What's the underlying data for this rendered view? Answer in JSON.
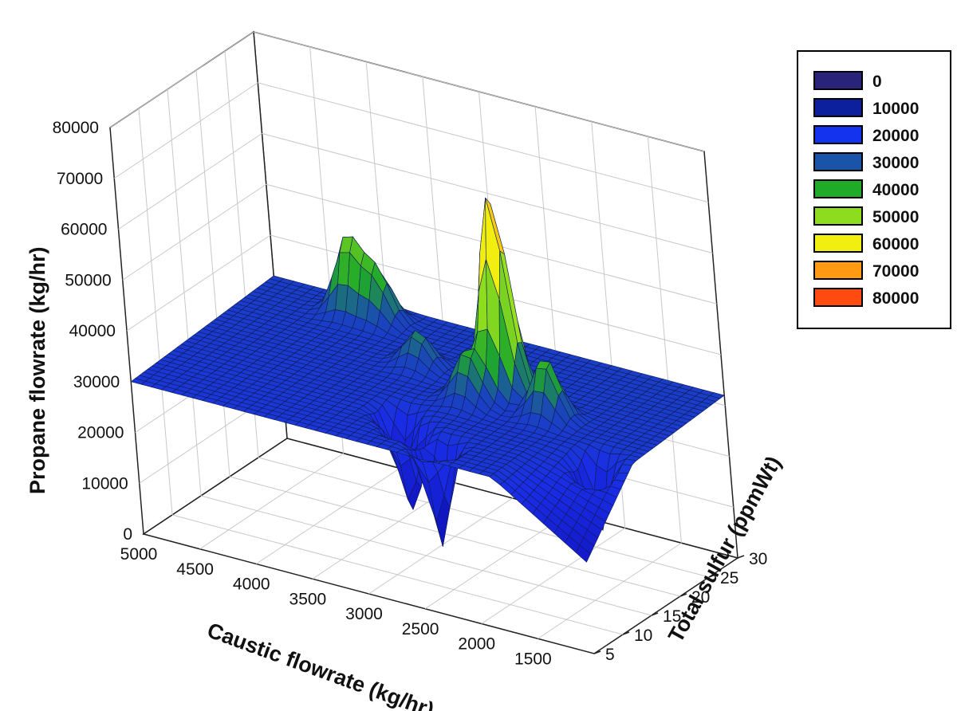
{
  "chart_data": {
    "type": "surface3d",
    "title": "",
    "xlabel": "Caustic flowrate (kg/hr)",
    "ylabel": "Total sulfur (ppmWt)",
    "zlabel": "Propane flowrate (kg/hr)",
    "x_ticks": [
      "5000",
      "4500",
      "4000",
      "3500",
      "3000",
      "2500",
      "2000",
      "1500"
    ],
    "y_ticks": [
      "5",
      "10",
      "15",
      "20",
      "25",
      "30"
    ],
    "z_ticks": [
      "0",
      "10000",
      "20000",
      "30000",
      "40000",
      "50000",
      "60000",
      "70000",
      "80000"
    ],
    "xlim": [
      5000,
      1000
    ],
    "ylim": [
      5,
      30
    ],
    "zlim": [
      0,
      80000
    ],
    "grid": true,
    "legend_position": "top-right",
    "legend": [
      {
        "label": "0",
        "color": "#2a237a"
      },
      {
        "label": "10000",
        "color": "#0c1f9c"
      },
      {
        "label": "20000",
        "color": "#1433ee"
      },
      {
        "label": "30000",
        "color": "#1954a8"
      },
      {
        "label": "40000",
        "color": "#1faa28"
      },
      {
        "label": "50000",
        "color": "#8edc1e"
      },
      {
        "label": "60000",
        "color": "#f2ee10"
      },
      {
        "label": "70000",
        "color": "#ff9a12"
      },
      {
        "label": "80000",
        "color": "#ff4a10"
      }
    ],
    "base_level": 30000,
    "peaks": [
      {
        "caustic": 2450,
        "sulfur": 20,
        "propane": 70000
      },
      {
        "caustic": 4150,
        "sulfur": 27,
        "propane": 45000
      },
      {
        "caustic": 3900,
        "sulfur": 27,
        "propane": 40000
      },
      {
        "caustic": 3250,
        "sulfur": 21,
        "propane": 37000
      },
      {
        "caustic": 1950,
        "sulfur": 18,
        "propane": 42000
      },
      {
        "caustic": 2600,
        "sulfur": 17,
        "propane": 40000
      }
    ],
    "dips": [
      {
        "caustic": 2450,
        "sulfur": 8,
        "propane": 10000
      },
      {
        "caustic": 2800,
        "sulfur": 10,
        "propane": 13000
      },
      {
        "caustic": 3000,
        "sulfur": 12,
        "propane": 18000
      },
      {
        "caustic": 1300,
        "sulfur": 13,
        "propane": 16000
      }
    ]
  }
}
